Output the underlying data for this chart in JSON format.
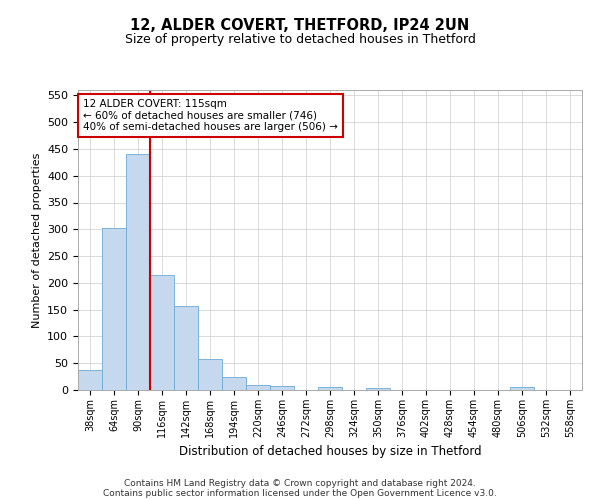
{
  "title1": "12, ALDER COVERT, THETFORD, IP24 2UN",
  "title2": "Size of property relative to detached houses in Thetford",
  "xlabel": "Distribution of detached houses by size in Thetford",
  "ylabel": "Number of detached properties",
  "bar_values": [
    37,
    303,
    441,
    215,
    157,
    58,
    25,
    10,
    8,
    0,
    6,
    0,
    3,
    0,
    0,
    0,
    0,
    0,
    5,
    0,
    0
  ],
  "categories": [
    "38sqm",
    "64sqm",
    "90sqm",
    "116sqm",
    "142sqm",
    "168sqm",
    "194sqm",
    "220sqm",
    "246sqm",
    "272sqm",
    "298sqm",
    "324sqm",
    "350sqm",
    "376sqm",
    "402sqm",
    "428sqm",
    "454sqm",
    "480sqm",
    "506sqm",
    "532sqm",
    "558sqm"
  ],
  "bar_color": "#c5d8ee",
  "bar_edge_color": "#6aaad4",
  "vline_color": "#cc0000",
  "annotation_text": "12 ALDER COVERT: 115sqm\n← 60% of detached houses are smaller (746)\n40% of semi-detached houses are larger (506) →",
  "annotation_box_color": "#ffffff",
  "annotation_box_edge": "#cc0000",
  "ylim": [
    0,
    560
  ],
  "yticks": [
    0,
    50,
    100,
    150,
    200,
    250,
    300,
    350,
    400,
    450,
    500,
    550
  ],
  "footer_line1": "Contains HM Land Registry data © Crown copyright and database right 2024.",
  "footer_line2": "Contains public sector information licensed under the Open Government Licence v3.0.",
  "background_color": "#ffffff",
  "grid_color": "#cccccc",
  "fig_width": 6.0,
  "fig_height": 5.0,
  "vline_bin_index": 2.5
}
